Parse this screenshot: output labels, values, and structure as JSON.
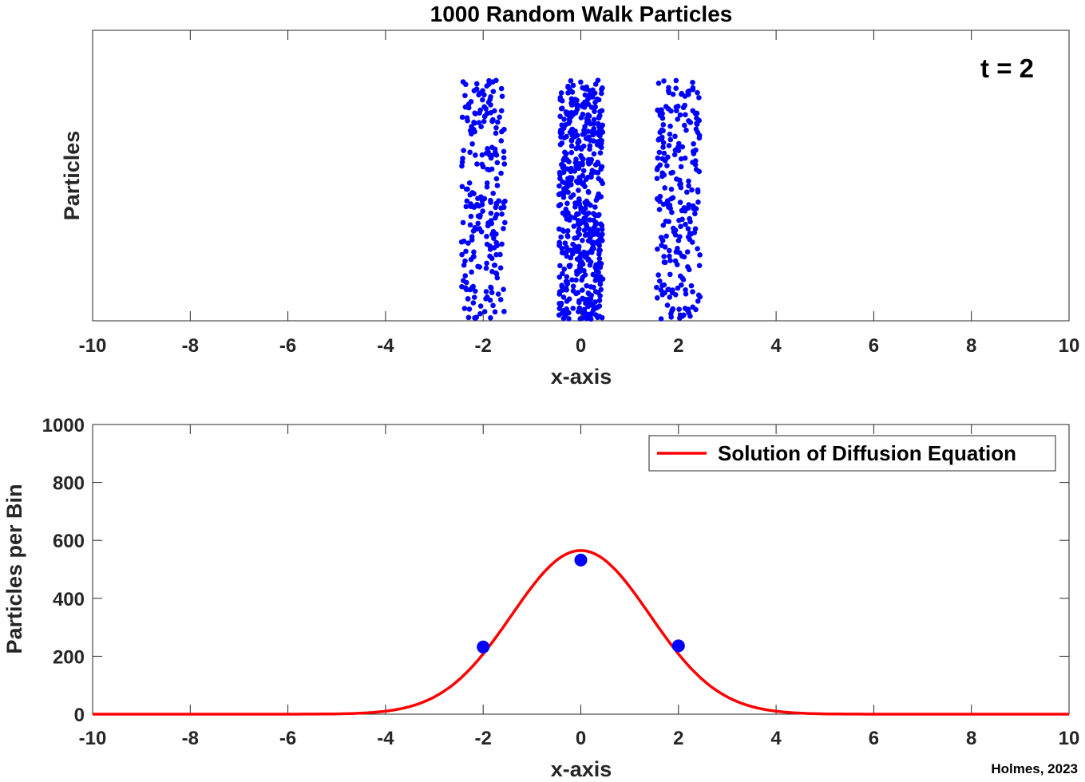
{
  "chart_data": [
    {
      "type": "scatter",
      "title": "1000 Random Walk Particles",
      "xlabel": "x-axis",
      "ylabel": "Particles",
      "xlim": [
        -10,
        10
      ],
      "xticks": [
        "-10",
        "-8",
        "-6",
        "-4",
        "-2",
        "0",
        "2",
        "4",
        "6",
        "8",
        "10"
      ],
      "annotation": "t = 2",
      "particle_positions": [
        -2,
        0,
        2
      ],
      "particle_counts": [
        232,
        532,
        236
      ],
      "marker_color": "#0000ff",
      "grid": false
    },
    {
      "type": "line",
      "xlabel": "x-axis",
      "ylabel": "Particles per Bin",
      "xlim": [
        -10,
        10
      ],
      "ylim": [
        0,
        1000
      ],
      "xticks": [
        "-10",
        "-8",
        "-6",
        "-4",
        "-2",
        "0",
        "2",
        "4",
        "6",
        "8",
        "10"
      ],
      "yticks": [
        "0",
        "200",
        "400",
        "600",
        "800",
        "1000"
      ],
      "series": [
        {
          "name": "Solution of Diffusion Equation",
          "type": "line",
          "color": "#ff0000",
          "peak": 565,
          "variance_4Dt": 4
        }
      ],
      "points": {
        "x": [
          -2,
          0,
          2
        ],
        "y": [
          232,
          532,
          236
        ],
        "color": "#0000ff"
      },
      "legend": "top-right",
      "grid": false
    }
  ],
  "credit": "Holmes, 2023"
}
